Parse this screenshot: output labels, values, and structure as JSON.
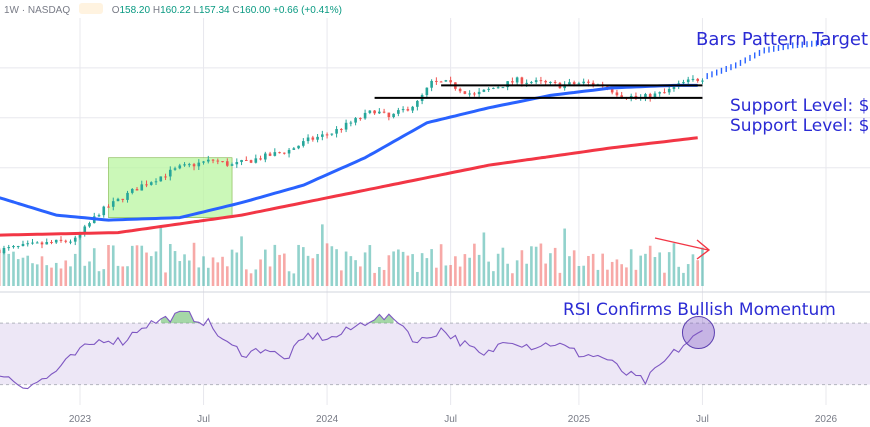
{
  "header": {
    "interval_exchange": "1W · NASDAQ",
    "o_key": "O",
    "o": "158.20",
    "h_key": "H",
    "h": "160.22",
    "l_key": "L",
    "l": "157.34",
    "c_key": "C",
    "c": "160.00",
    "change": "+0.66 (+0.41%)"
  },
  "annotations": {
    "target": "Bars Pattern Target",
    "support_1": "Support Level: $",
    "support_2": "Support Level: $",
    "rsi_note": "RSI Confirms Bullish Momentum"
  },
  "colors": {
    "up": "#26a69a",
    "down": "#ef5350",
    "ma_short": "#2962ff",
    "ma_long": "#f23645",
    "projection": "#2962ff",
    "annotation_text": "#2b2bd4",
    "rsi_line": "#7e57c2",
    "rsi_band": "#ede7f6",
    "rsi_overbought_fill": "#4caf50",
    "box": "#b9f6a0",
    "arrow": "#f23645",
    "grid": "#e8e8ee"
  },
  "chart_data": {
    "type": "candlestick",
    "interval": "1W",
    "x_tick_labels": [
      "2023",
      "Jul",
      "2024",
      "Jul",
      "2025",
      "Jul",
      "2026"
    ],
    "x_tick_dates": [
      "2023-01-02",
      "2023-07-03",
      "2024-01-01",
      "2024-07-01",
      "2025-01-06",
      "2025-07-07",
      "2026-01-05"
    ],
    "start": "2022-09-05",
    "price_keypoints": [
      [
        "2022-09-05",
        97
      ],
      [
        "2022-10-24",
        99
      ],
      [
        "2022-12-26",
        101
      ],
      [
        "2023-01-30",
        112
      ],
      [
        "2023-04-03",
        123
      ],
      [
        "2023-05-29",
        130
      ],
      [
        "2023-07-17",
        133
      ],
      [
        "2023-08-14",
        131
      ],
      [
        "2023-09-25",
        134
      ],
      [
        "2023-11-06",
        137
      ],
      [
        "2023-12-04",
        141
      ],
      [
        "2024-01-08",
        144
      ],
      [
        "2024-02-05",
        148
      ],
      [
        "2024-03-11",
        153
      ],
      [
        "2024-04-01",
        150
      ],
      [
        "2024-05-13",
        156
      ],
      [
        "2024-06-03",
        164
      ],
      [
        "2024-06-24",
        164
      ],
      [
        "2024-08-05",
        159
      ],
      [
        "2024-09-02",
        162
      ],
      [
        "2024-10-07",
        165
      ],
      [
        "2024-11-11",
        164
      ],
      [
        "2024-12-09",
        163
      ],
      [
        "2025-01-13",
        164
      ],
      [
        "2025-02-10",
        163
      ],
      [
        "2025-03-10",
        159
      ],
      [
        "2025-04-07",
        158
      ],
      [
        "2025-05-12",
        160
      ],
      [
        "2025-06-09",
        164
      ],
      [
        "2025-07-07",
        166
      ]
    ],
    "projection_keypoints": [
      [
        "2025-07-07",
        166
      ],
      [
        "2025-08-25",
        171
      ],
      [
        "2025-10-06",
        177
      ],
      [
        "2025-11-17",
        179
      ],
      [
        "2025-12-29",
        180
      ]
    ],
    "ma_short_keypoints": [
      [
        "2022-09-05",
        118
      ],
      [
        "2022-11-28",
        111
      ],
      [
        "2023-02-13",
        109
      ],
      [
        "2023-05-29",
        110
      ],
      [
        "2023-08-28",
        116
      ],
      [
        "2023-11-27",
        123
      ],
      [
        "2024-02-26",
        134
      ],
      [
        "2024-05-27",
        148
      ],
      [
        "2024-08-26",
        154
      ],
      [
        "2024-11-25",
        159
      ],
      [
        "2025-02-24",
        162
      ],
      [
        "2025-05-26",
        163
      ],
      [
        "2025-06-30",
        163
      ]
    ],
    "ma_long_keypoints": [
      [
        "2022-09-05",
        103
      ],
      [
        "2023-02-27",
        104
      ],
      [
        "2023-08-28",
        111
      ],
      [
        "2024-02-26",
        121
      ],
      [
        "2024-08-26",
        131
      ],
      [
        "2025-02-24",
        138
      ],
      [
        "2025-06-30",
        142
      ]
    ],
    "support_levels": [
      {
        "price": 163,
        "from": "2024-06-17",
        "to": "2025-07-07"
      },
      {
        "price": 158,
        "from": "2024-03-11",
        "to": "2025-07-07"
      }
    ],
    "pattern_box": {
      "from": "2023-02-13",
      "to": "2023-08-14",
      "price_low": 110,
      "price_high": 134
    },
    "y_range": [
      85,
      190
    ],
    "volume_range": [
      0,
      10
    ],
    "rsi_keypoints": [
      [
        "2022-09-05",
        38
      ],
      [
        "2022-10-10",
        29
      ],
      [
        "2022-11-14",
        34
      ],
      [
        "2023-01-02",
        52
      ],
      [
        "2023-02-06",
        60
      ],
      [
        "2023-03-06",
        58
      ],
      [
        "2023-04-03",
        68
      ],
      [
        "2023-05-01",
        72
      ],
      [
        "2023-06-05",
        76
      ],
      [
        "2023-07-10",
        70
      ],
      [
        "2023-08-07",
        56
      ],
      [
        "2023-09-04",
        50
      ],
      [
        "2023-10-02",
        54
      ],
      [
        "2023-10-30",
        46
      ],
      [
        "2023-12-04",
        62
      ],
      [
        "2024-01-08",
        60
      ],
      [
        "2024-02-05",
        66
      ],
      [
        "2024-03-11",
        74
      ],
      [
        "2024-04-15",
        72
      ],
      [
        "2024-05-13",
        57
      ],
      [
        "2024-06-17",
        66
      ],
      [
        "2024-07-22",
        56
      ],
      [
        "2024-08-19",
        48
      ],
      [
        "2024-09-23",
        60
      ],
      [
        "2024-10-28",
        55
      ],
      [
        "2024-12-02",
        57
      ],
      [
        "2025-01-06",
        50
      ],
      [
        "2025-02-10",
        48
      ],
      [
        "2025-03-17",
        37
      ],
      [
        "2025-04-14",
        32
      ],
      [
        "2025-05-19",
        48
      ],
      [
        "2025-06-16",
        58
      ],
      [
        "2025-07-07",
        64
      ]
    ],
    "rsi_range": [
      20,
      85
    ],
    "rsi_levels": [
      70,
      30
    ]
  }
}
